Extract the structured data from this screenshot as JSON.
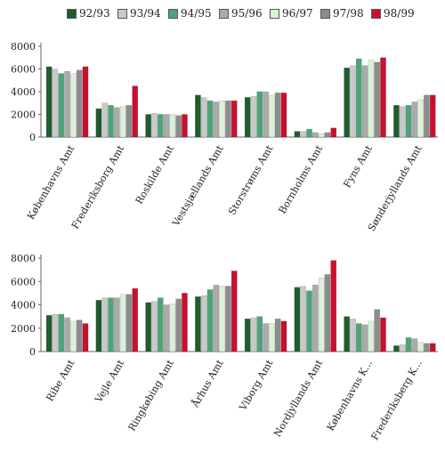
{
  "legend": {
    "items": [
      {
        "label": "92/93",
        "color": "#1f5c2e"
      },
      {
        "label": "93/94",
        "color": "#c9c9c9"
      },
      {
        "label": "94/95",
        "color": "#4fa37a"
      },
      {
        "label": "95/96",
        "color": "#aaaaaa"
      },
      {
        "label": "96/97",
        "color": "#dcefd8"
      },
      {
        "label": "97/98",
        "color": "#8c8c8c"
      },
      {
        "label": "98/99",
        "color": "#c8102e"
      }
    ]
  },
  "chart_data": [
    {
      "type": "bar",
      "title": "",
      "xlabel": "",
      "ylabel": "",
      "ylim": [
        0,
        8000
      ],
      "yticks": [
        "0",
        "2000",
        "4000",
        "6000",
        "8000"
      ],
      "legend_placement": "top",
      "grid": false,
      "categories": [
        "Københavns Amt",
        "Frederiksborg Amt",
        "Roskilde Amt",
        "Vestsjællands Amt",
        "Storstrøms Amt",
        "Bornholms Amt",
        "Fyns Amt",
        "Sønderjyllands Amt"
      ],
      "series": [
        {
          "name": "92/93",
          "values": [
            6200,
            2500,
            2000,
            3700,
            3500,
            500,
            6100,
            2800
          ]
        },
        {
          "name": "93/94",
          "values": [
            6000,
            3000,
            2100,
            3500,
            3600,
            500,
            6300,
            2700
          ]
        },
        {
          "name": "94/95",
          "values": [
            5600,
            2800,
            2000,
            3200,
            4000,
            700,
            6900,
            2800
          ]
        },
        {
          "name": "95/96",
          "values": [
            5800,
            2600,
            2000,
            3100,
            4000,
            400,
            6300,
            3100
          ]
        },
        {
          "name": "96/97",
          "values": [
            5600,
            2700,
            2000,
            3200,
            3700,
            300,
            6800,
            3300
          ]
        },
        {
          "name": "97/98",
          "values": [
            5900,
            2800,
            1900,
            3200,
            3900,
            400,
            6600,
            3700
          ]
        },
        {
          "name": "98/99",
          "values": [
            6200,
            4500,
            2000,
            3200,
            3900,
            800,
            7000,
            3700
          ]
        }
      ]
    },
    {
      "type": "bar",
      "title": "",
      "xlabel": "",
      "ylabel": "",
      "ylim": [
        0,
        8000
      ],
      "yticks": [
        "0",
        "2000",
        "4000",
        "6000",
        "8000"
      ],
      "grid": false,
      "categories": [
        "Ribe Amt",
        "Vejle Amt",
        "Ringkøbing Amt",
        "Århus Amt",
        "Viborg Amt",
        "Nordjyllands Amt",
        "Københavns K...",
        "Frederiksberg K..."
      ],
      "series": [
        {
          "name": "92/93",
          "values": [
            3100,
            4400,
            4200,
            4700,
            2800,
            5500,
            3000,
            500
          ]
        },
        {
          "name": "93/94",
          "values": [
            3200,
            4600,
            4300,
            4800,
            2900,
            5600,
            2800,
            600
          ]
        },
        {
          "name": "94/95",
          "values": [
            3200,
            4600,
            4600,
            5300,
            3000,
            5200,
            2400,
            1200
          ]
        },
        {
          "name": "95/96",
          "values": [
            2900,
            4600,
            4000,
            5700,
            2400,
            5700,
            2300,
            1100
          ]
        },
        {
          "name": "96/97",
          "values": [
            2600,
            4900,
            4100,
            5600,
            2400,
            6300,
            2600,
            800
          ]
        },
        {
          "name": "97/98",
          "values": [
            2700,
            4900,
            4500,
            5600,
            2800,
            6600,
            3600,
            700
          ]
        },
        {
          "name": "98/99",
          "values": [
            2400,
            5400,
            5000,
            6900,
            2600,
            7800,
            2900,
            700
          ]
        }
      ]
    }
  ]
}
